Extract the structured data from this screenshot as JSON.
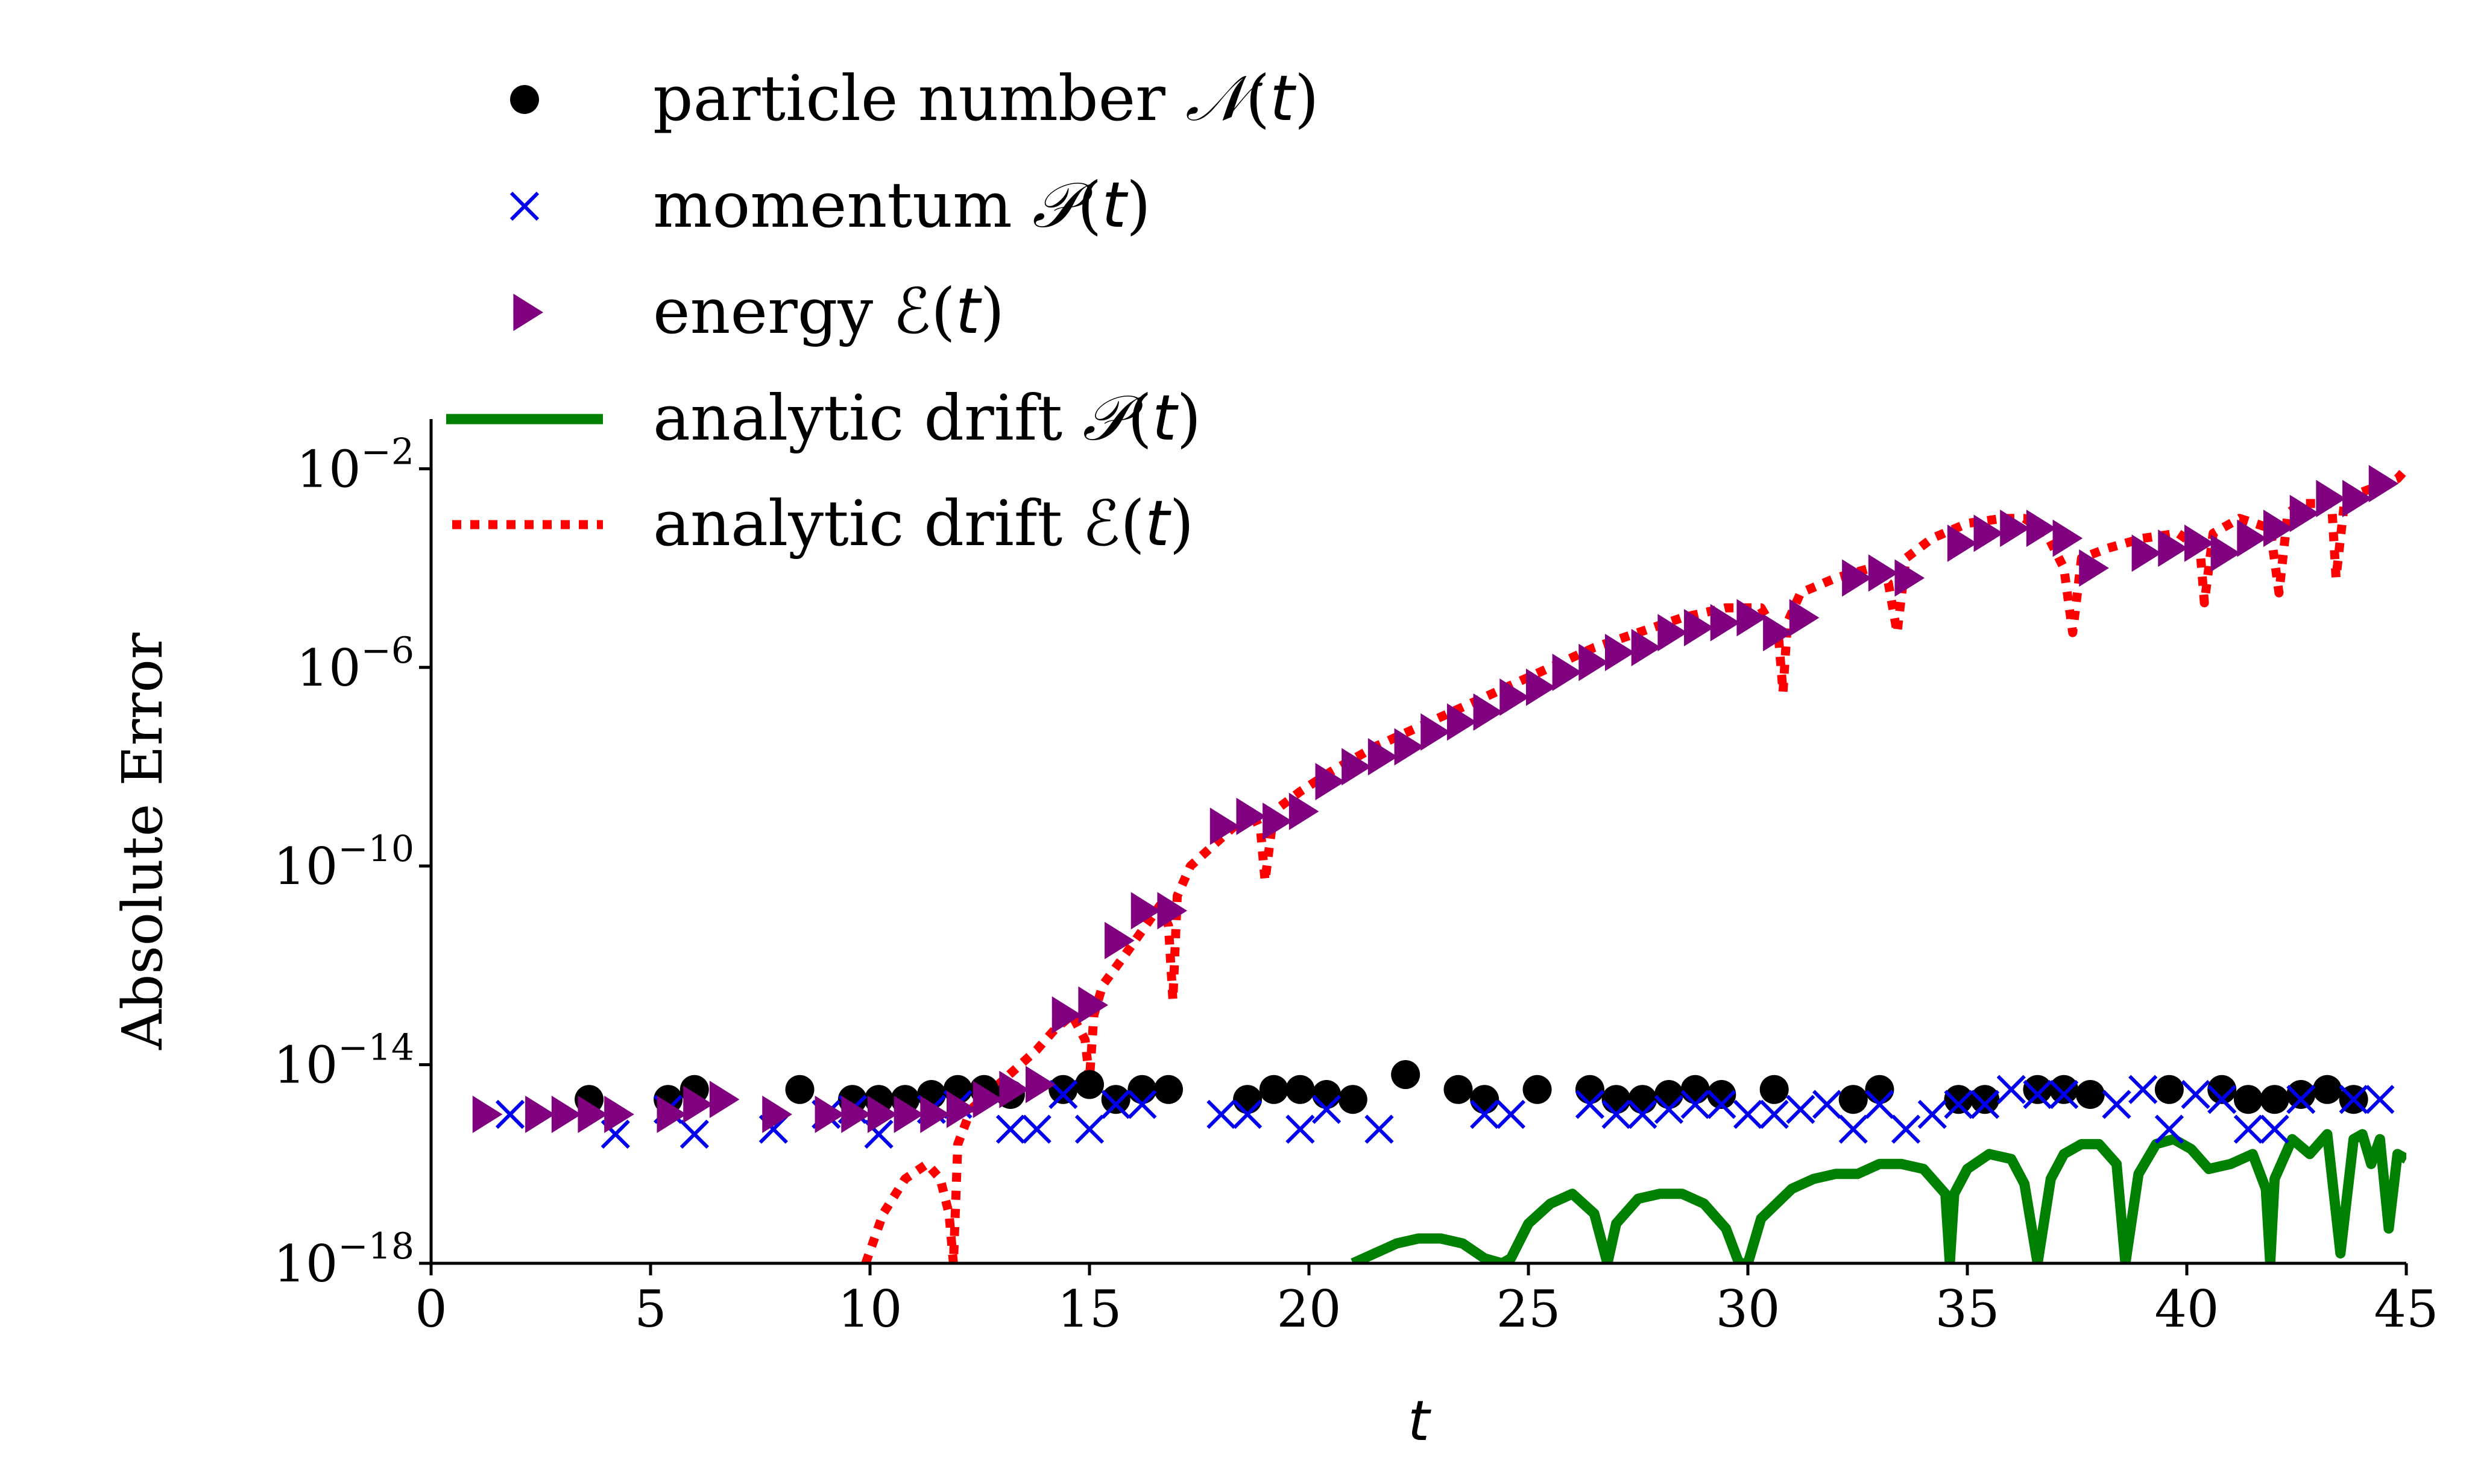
{
  "chart_data": {
    "type": "scatter",
    "title": "",
    "xlabel": "t",
    "ylabel": "Absolute Error",
    "xlim": [
      0,
      45
    ],
    "ylim_log10": [
      -18,
      -1
    ],
    "xticks": [
      0,
      5,
      10,
      15,
      20,
      25,
      30,
      35,
      40,
      45
    ],
    "yticks": [
      {
        "exp": -18,
        "base": "10",
        "sup": "−18"
      },
      {
        "exp": -14,
        "base": "10",
        "sup": "−14"
      },
      {
        "exp": -10,
        "base": "10",
        "sup": "−10"
      },
      {
        "exp": -6,
        "base": "10",
        "sup": "−6"
      },
      {
        "exp": -2,
        "base": "10",
        "sup": "−2"
      }
    ],
    "legend_position": "top-left, above axes",
    "series": [
      {
        "name": "particle number",
        "symbol": "𝒩",
        "marker": "circle",
        "color": "#000000",
        "x": [
          3.6,
          5.4,
          6.0,
          8.4,
          9.6,
          10.2,
          10.8,
          11.4,
          12.0,
          12.6,
          13.2,
          14.4,
          15.0,
          15.6,
          16.2,
          16.8,
          18.6,
          19.2,
          19.8,
          20.4,
          21.0,
          22.2,
          23.4,
          24.0,
          25.2,
          26.4,
          27.0,
          27.6,
          28.2,
          28.8,
          29.4,
          30.6,
          32.4,
          33.0,
          34.8,
          35.4,
          36.6,
          37.2,
          37.8,
          39.6,
          40.8,
          41.4,
          42.0,
          42.6,
          43.2,
          43.8
        ],
        "y_log10": [
          -14.7,
          -14.7,
          -14.5,
          -14.5,
          -14.7,
          -14.7,
          -14.7,
          -14.6,
          -14.5,
          -14.5,
          -14.6,
          -14.5,
          -14.4,
          -14.7,
          -14.5,
          -14.5,
          -14.7,
          -14.5,
          -14.5,
          -14.6,
          -14.7,
          -14.2,
          -14.5,
          -14.7,
          -14.5,
          -14.5,
          -14.7,
          -14.7,
          -14.6,
          -14.5,
          -14.6,
          -14.5,
          -14.7,
          -14.5,
          -14.7,
          -14.7,
          -14.5,
          -14.5,
          -14.6,
          -14.5,
          -14.5,
          -14.7,
          -14.7,
          -14.6,
          -14.5,
          -14.7
        ]
      },
      {
        "name": "momentum",
        "symbol": "𝒫",
        "marker": "x",
        "color": "#0000ee",
        "x": [
          1.8,
          4.2,
          5.4,
          6.0,
          7.8,
          9.0,
          9.6,
          10.2,
          11.4,
          12.0,
          13.2,
          13.8,
          14.4,
          15.0,
          15.6,
          16.2,
          18.0,
          18.6,
          19.8,
          20.4,
          21.6,
          24.0,
          24.6,
          26.4,
          27.0,
          27.6,
          28.2,
          28.8,
          29.4,
          30.0,
          30.6,
          31.2,
          31.8,
          32.4,
          33.0,
          33.6,
          34.2,
          34.8,
          35.4,
          36.0,
          36.6,
          37.2,
          38.4,
          39.0,
          39.6,
          40.2,
          40.8,
          41.4,
          42.0,
          42.6,
          43.8,
          44.4
        ],
        "y_log10": [
          -15.0,
          -15.4,
          -14.9,
          -15.4,
          -15.3,
          -15.0,
          -14.9,
          -15.4,
          -14.9,
          -14.8,
          -15.3,
          -15.3,
          -14.6,
          -15.3,
          -14.8,
          -14.8,
          -15.0,
          -15.0,
          -15.3,
          -14.9,
          -15.3,
          -15.0,
          -15.0,
          -14.8,
          -15.0,
          -15.0,
          -14.9,
          -14.8,
          -14.8,
          -15.0,
          -15.0,
          -14.9,
          -14.8,
          -15.3,
          -14.8,
          -15.3,
          -15.0,
          -14.8,
          -14.8,
          -14.5,
          -14.6,
          -14.6,
          -14.8,
          -14.5,
          -15.3,
          -14.6,
          -14.7,
          -15.3,
          -15.3,
          -14.7,
          -14.7,
          -14.7
        ]
      },
      {
        "name": "energy",
        "symbol": "ℰ",
        "marker": "triangle-right",
        "color": "#800080",
        "x": [
          1.2,
          2.4,
          3.0,
          3.6,
          4.2,
          5.4,
          6.0,
          6.6,
          7.8,
          9.0,
          9.6,
          10.2,
          10.8,
          11.4,
          12.0,
          12.6,
          13.2,
          13.8,
          14.4,
          15.0,
          15.6,
          16.2,
          16.8,
          18.0,
          18.6,
          19.2,
          19.8,
          20.4,
          21.0,
          21.6,
          22.2,
          22.8,
          23.4,
          24.0,
          24.6,
          25.2,
          25.8,
          26.4,
          27.0,
          27.6,
          28.2,
          28.8,
          29.4,
          30.0,
          30.6,
          31.2,
          32.4,
          33.0,
          33.6,
          34.8,
          35.4,
          36.0,
          36.6,
          37.2,
          37.8,
          39.0,
          39.6,
          40.2,
          40.8,
          41.4,
          42.0,
          42.6,
          43.2,
          43.8,
          44.4
        ],
        "y_log10": [
          -15.0,
          -15.0,
          -15.0,
          -15.0,
          -15.0,
          -15.0,
          -14.8,
          -14.7,
          -15.0,
          -15.0,
          -15.0,
          -15.0,
          -15.0,
          -15.0,
          -14.9,
          -14.7,
          -14.5,
          -14.4,
          -13.0,
          -12.8,
          -11.5,
          -10.9,
          -10.9,
          -9.2,
          -9.0,
          -9.1,
          -8.9,
          -8.3,
          -8.0,
          -7.8,
          -7.6,
          -7.3,
          -7.1,
          -6.9,
          -6.6,
          -6.4,
          -6.1,
          -5.9,
          -5.7,
          -5.6,
          -5.3,
          -5.2,
          -5.1,
          -5.0,
          -5.3,
          -5.0,
          -4.2,
          -4.1,
          -4.2,
          -3.5,
          -3.3,
          -3.2,
          -3.2,
          -3.4,
          -4.0,
          -3.7,
          -3.6,
          -3.5,
          -3.7,
          -3.4,
          -3.2,
          -2.9,
          -2.6,
          -2.6,
          -2.3
        ]
      },
      {
        "name": "analytic drift",
        "symbol": "𝒫",
        "marker": "line",
        "color": "#008000",
        "x": [
          21.0,
          21.5,
          22.0,
          22.5,
          23.0,
          23.5,
          24.0,
          24.4,
          24.6,
          25.0,
          25.5,
          26.0,
          26.5,
          26.8,
          27.0,
          27.5,
          28.0,
          28.5,
          29.0,
          29.5,
          29.8,
          30.0,
          30.3,
          31.0,
          31.5,
          32.0,
          32.5,
          33.0,
          33.5,
          34.0,
          34.5,
          34.6,
          34.7,
          35.0,
          35.5,
          36.0,
          36.3,
          36.6,
          36.9,
          37.2,
          37.6,
          38.0,
          38.4,
          38.6,
          38.9,
          39.3,
          39.7,
          40.1,
          40.5,
          41.0,
          41.5,
          41.8,
          41.9,
          42.0,
          42.4,
          42.8,
          43.2,
          43.5,
          43.8,
          44.0,
          44.2,
          44.4,
          44.6,
          44.8,
          45.0
        ],
        "y_log10": [
          -18.0,
          -17.8,
          -17.6,
          -17.5,
          -17.5,
          -17.6,
          -17.9,
          -18.0,
          -17.9,
          -17.2,
          -16.8,
          -16.6,
          -17.0,
          -18.0,
          -17.2,
          -16.7,
          -16.6,
          -16.6,
          -16.8,
          -17.3,
          -18.0,
          -18.0,
          -17.1,
          -16.5,
          -16.3,
          -16.2,
          -16.2,
          -16.0,
          -16.0,
          -16.1,
          -16.6,
          -18.0,
          -16.6,
          -16.1,
          -15.8,
          -15.9,
          -16.4,
          -18.0,
          -16.3,
          -15.8,
          -15.6,
          -15.6,
          -16.0,
          -18.0,
          -16.2,
          -15.6,
          -15.5,
          -15.7,
          -16.1,
          -16.0,
          -15.8,
          -16.5,
          -18.0,
          -16.3,
          -15.5,
          -15.8,
          -15.4,
          -17.8,
          -15.5,
          -15.4,
          -16.0,
          -15.5,
          -17.3,
          -15.8,
          -15.9
        ]
      },
      {
        "name": "analytic drift",
        "symbol": "ℰ",
        "marker": "dotted",
        "color": "#ff0000",
        "x": [
          9.9,
          10.3,
          10.8,
          11.3,
          11.6,
          11.8,
          11.9,
          12.0,
          12.3,
          12.8,
          13.3,
          13.8,
          14.2,
          14.6,
          14.9,
          15.0,
          15.1,
          15.3,
          15.8,
          16.2,
          16.6,
          16.8,
          16.9,
          17.0,
          17.3,
          17.8,
          18.3,
          18.7,
          18.9,
          19.0,
          19.2,
          19.8,
          20.5,
          21.5,
          22.5,
          23.5,
          24.5,
          25.5,
          26.5,
          27.5,
          28.5,
          29.5,
          30.3,
          30.7,
          30.8,
          30.9,
          31.2,
          32.0,
          32.8,
          33.2,
          33.4,
          33.6,
          34.2,
          35.0,
          35.8,
          36.3,
          36.8,
          37.2,
          37.4,
          37.6,
          38.2,
          39.0,
          39.8,
          40.3,
          40.4,
          40.6,
          41.2,
          41.9,
          42.1,
          42.3,
          42.6,
          43.3,
          43.4,
          43.6,
          44.2,
          44.8,
          45.0
        ],
        "y_log10": [
          -18.0,
          -17.0,
          -16.3,
          -16.0,
          -16.3,
          -17.0,
          -18.0,
          -15.6,
          -14.9,
          -14.5,
          -14.1,
          -13.7,
          -13.3,
          -13.0,
          -13.5,
          -14.3,
          -13.0,
          -12.4,
          -11.8,
          -11.3,
          -10.8,
          -11.2,
          -12.7,
          -10.6,
          -10.0,
          -9.6,
          -9.2,
          -8.9,
          -9.3,
          -10.3,
          -8.9,
          -8.5,
          -8.1,
          -7.6,
          -7.2,
          -6.8,
          -6.4,
          -6.0,
          -5.6,
          -5.3,
          -5.0,
          -4.8,
          -4.8,
          -5.4,
          -6.5,
          -5.1,
          -4.5,
          -4.2,
          -4.0,
          -4.3,
          -5.3,
          -3.8,
          -3.4,
          -3.1,
          -3.0,
          -3.0,
          -3.3,
          -4.0,
          -5.3,
          -3.8,
          -3.6,
          -3.4,
          -3.3,
          -3.6,
          -4.7,
          -3.3,
          -3.0,
          -3.2,
          -4.5,
          -2.9,
          -2.7,
          -2.7,
          -4.2,
          -2.6,
          -2.4,
          -2.2,
          -2.0
        ]
      }
    ]
  }
}
